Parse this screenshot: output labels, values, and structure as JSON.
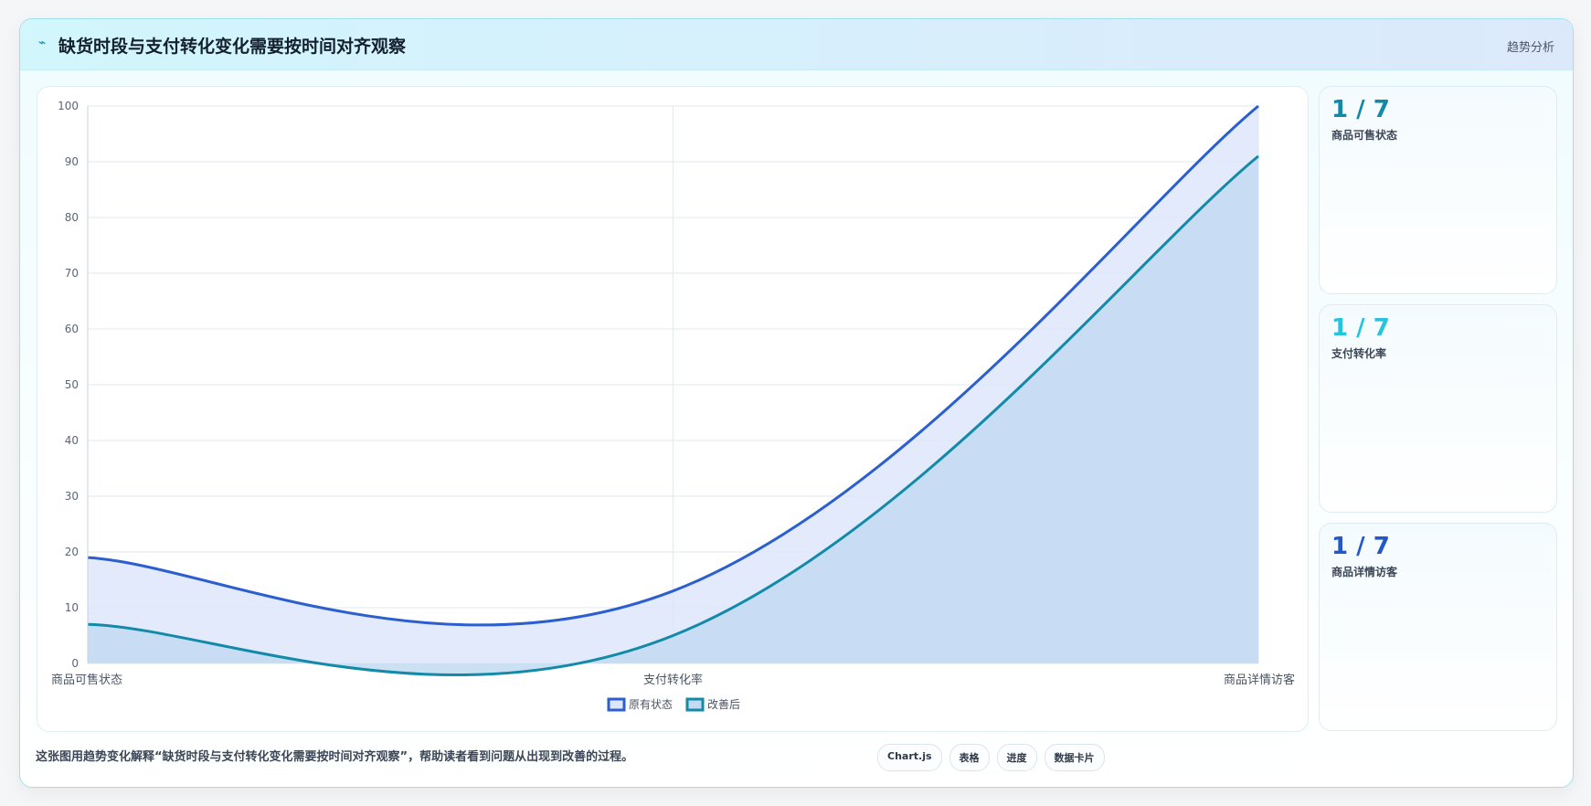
{
  "header": {
    "title": "缺货时段与支付转化变化需要按时间对齐观察",
    "tag": "趋势分析"
  },
  "chart_data": {
    "type": "area",
    "categories": [
      "商品可售状态",
      "支付转化率",
      "商品详情访客"
    ],
    "series": [
      {
        "name": "原有状态",
        "color": "#2b5fd0",
        "fill": "#dde6fb",
        "values": [
          19,
          13,
          100
        ]
      },
      {
        "name": "改善后",
        "color": "#128aa8",
        "fill": "#c3dbf1",
        "values": [
          7,
          5,
          91
        ]
      }
    ],
    "ylim": [
      0,
      100
    ],
    "yticks": [
      0,
      10,
      20,
      30,
      40,
      50,
      60,
      70,
      80,
      90,
      100
    ],
    "grid": true,
    "legend": "bottom"
  },
  "cards": [
    {
      "value": "1 / 7",
      "label": "商品可售状态",
      "color": "#1389a8"
    },
    {
      "value": "1 / 7",
      "label": "支付转化率",
      "color": "#27c3dc"
    },
    {
      "value": "1 / 7",
      "label": "商品详情访客",
      "color": "#2458c9"
    }
  ],
  "footer": {
    "text": "这张图用趋势变化解释“缺货时段与支付转化变化需要按时间对齐观察”，帮助读者看到问题从出现到改善的过程。",
    "buttons": [
      "Chart.js",
      "表格",
      "进度",
      "数据卡片"
    ]
  }
}
